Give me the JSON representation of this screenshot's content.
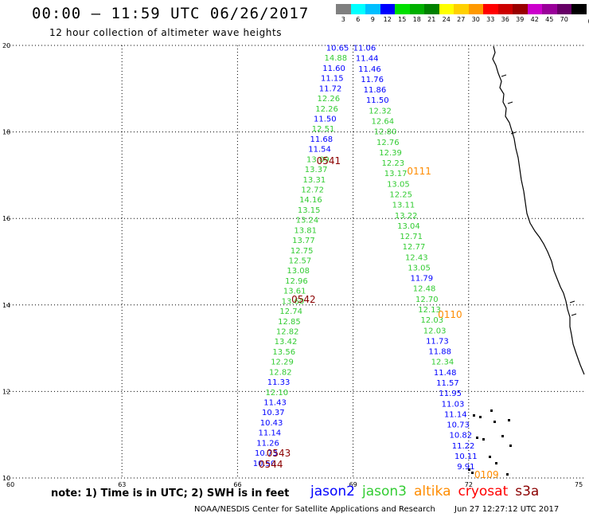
{
  "header": {
    "title": "00:00 – 11:59 UTC 06/26/2017",
    "subtitle": "12 hour collection of altimeter wave heights"
  },
  "legend": {
    "unit": "(ft)",
    "items": [
      {
        "label": "3",
        "color": "#7f7f7f"
      },
      {
        "label": "6",
        "color": "#00ffff"
      },
      {
        "label": "9",
        "color": "#00bfff"
      },
      {
        "label": "12",
        "color": "#0000ff"
      },
      {
        "label": "15",
        "color": "#00e000"
      },
      {
        "label": "18",
        "color": "#00b000"
      },
      {
        "label": "21",
        "color": "#008000"
      },
      {
        "label": "24",
        "color": "#ffff00"
      },
      {
        "label": "27",
        "color": "#ffd000"
      },
      {
        "label": "30",
        "color": "#ff9900"
      },
      {
        "label": "33",
        "color": "#ff0000"
      },
      {
        "label": "36",
        "color": "#cc0000"
      },
      {
        "label": "39",
        "color": "#990000"
      },
      {
        "label": "42",
        "color": "#cc00cc"
      },
      {
        "label": "45",
        "color": "#990099"
      },
      {
        "label": "70",
        "color": "#660066"
      },
      {
        "label": "",
        "color": "#000000"
      }
    ]
  },
  "map": {
    "x_ticks": [
      "60",
      "63",
      "66",
      "69",
      "72",
      "75"
    ],
    "y_ticks": [
      "10",
      "12",
      "14",
      "16",
      "18",
      "20"
    ],
    "x_range": [
      60,
      75
    ],
    "y_range": [
      10,
      20
    ],
    "grid": "dotted",
    "colors": {
      "jason2": "#0000ff",
      "jason3": "#33cc33",
      "altika": "#ff8c00",
      "cryosat": "#ff0000",
      "s3a": "#8b0000",
      "coast": "#000000"
    }
  },
  "tracks": [
    {
      "name": "left-pass",
      "start_lon": 68.3,
      "start_lat": 19.88,
      "end_lon": 66.4,
      "end_lat": 10.28,
      "points": [
        {
          "v": "10.65",
          "s": "jason2"
        },
        {
          "v": "14.88",
          "s": "jason3"
        },
        {
          "v": "11.60",
          "s": "jason2"
        },
        {
          "v": "11.15",
          "s": "jason2"
        },
        {
          "v": "11.72",
          "s": "jason2"
        },
        {
          "v": "12.26",
          "s": "jason3"
        },
        {
          "v": "12.26",
          "s": "jason3"
        },
        {
          "v": "11.50",
          "s": "jason2"
        },
        {
          "v": "12.51",
          "s": "jason3"
        },
        {
          "v": "11.68",
          "s": "jason2"
        },
        {
          "v": "11.54",
          "s": "jason2"
        },
        {
          "v": "13.09",
          "s": "jason3"
        },
        {
          "v": "13.37",
          "s": "jason3"
        },
        {
          "v": "13.31",
          "s": "jason3"
        },
        {
          "v": "12.72",
          "s": "jason3"
        },
        {
          "v": "14.16",
          "s": "jason3"
        },
        {
          "v": "13.15",
          "s": "jason3"
        },
        {
          "v": "13.24",
          "s": "jason3"
        },
        {
          "v": "13.81",
          "s": "jason3"
        },
        {
          "v": "13.77",
          "s": "jason3"
        },
        {
          "v": "12.75",
          "s": "jason3"
        },
        {
          "v": "12.57",
          "s": "jason3"
        },
        {
          "v": "13.08",
          "s": "jason3"
        },
        {
          "v": "12.96",
          "s": "jason3"
        },
        {
          "v": "13.61",
          "s": "jason3"
        },
        {
          "v": "13.60",
          "s": "jason3"
        },
        {
          "v": "12.74",
          "s": "jason3"
        },
        {
          "v": "12.85",
          "s": "jason3"
        },
        {
          "v": "12.82",
          "s": "jason3"
        },
        {
          "v": "13.42",
          "s": "jason3"
        },
        {
          "v": "13.56",
          "s": "jason3"
        },
        {
          "v": "12.29",
          "s": "jason3"
        },
        {
          "v": "12.82",
          "s": "jason3"
        },
        {
          "v": "11.33",
          "s": "jason2"
        },
        {
          "v": "12.10",
          "s": "jason3"
        },
        {
          "v": "11.43",
          "s": "jason2"
        },
        {
          "v": "10.37",
          "s": "jason2"
        },
        {
          "v": "10.43",
          "s": "jason2"
        },
        {
          "v": "11.14",
          "s": "jason2"
        },
        {
          "v": "11.26",
          "s": "jason2"
        },
        {
          "v": "10.73",
          "s": "jason2"
        },
        {
          "v": "10.50",
          "s": "jason2"
        }
      ]
    },
    {
      "name": "right-pass",
      "start_lon": 69.0,
      "start_lat": 19.88,
      "end_lon": 71.7,
      "end_lat": 10.2,
      "points": [
        {
          "v": "11.06",
          "s": "jason2"
        },
        {
          "v": "11.44",
          "s": "jason2"
        },
        {
          "v": "11.46",
          "s": "jason2"
        },
        {
          "v": "11.76",
          "s": "jason2"
        },
        {
          "v": "11.86",
          "s": "jason2"
        },
        {
          "v": "11.50",
          "s": "jason2"
        },
        {
          "v": "12.32",
          "s": "jason3"
        },
        {
          "v": "12.64",
          "s": "jason3"
        },
        {
          "v": "12.80",
          "s": "jason3"
        },
        {
          "v": "12.76",
          "s": "jason3"
        },
        {
          "v": "12.39",
          "s": "jason3"
        },
        {
          "v": "12.23",
          "s": "jason3"
        },
        {
          "v": "13.17",
          "s": "jason3"
        },
        {
          "v": "13.05",
          "s": "jason3"
        },
        {
          "v": "12.25",
          "s": "jason3"
        },
        {
          "v": "13.11",
          "s": "jason3"
        },
        {
          "v": "13.22",
          "s": "jason3"
        },
        {
          "v": "13.04",
          "s": "jason3"
        },
        {
          "v": "12.71",
          "s": "jason3"
        },
        {
          "v": "12.77",
          "s": "jason3"
        },
        {
          "v": "12.43",
          "s": "jason3"
        },
        {
          "v": "13.05",
          "s": "jason3"
        },
        {
          "v": "11.79",
          "s": "jason2"
        },
        {
          "v": "12.48",
          "s": "jason3"
        },
        {
          "v": "12.70",
          "s": "jason3"
        },
        {
          "v": "12.13",
          "s": "jason3"
        },
        {
          "v": "12.03",
          "s": "jason3"
        },
        {
          "v": "12.03",
          "s": "jason3"
        },
        {
          "v": "11.73",
          "s": "jason2"
        },
        {
          "v": "11.88",
          "s": "jason2"
        },
        {
          "v": "12.34",
          "s": "jason3"
        },
        {
          "v": "11.48",
          "s": "jason2"
        },
        {
          "v": "11.57",
          "s": "jason2"
        },
        {
          "v": "11.95",
          "s": "jason2"
        },
        {
          "v": "11.03",
          "s": "jason2"
        },
        {
          "v": "11.14",
          "s": "jason2"
        },
        {
          "v": "10.73",
          "s": "jason2"
        },
        {
          "v": "10.82",
          "s": "jason2"
        },
        {
          "v": "11.22",
          "s": "jason2"
        },
        {
          "v": "10.11",
          "s": "jason2"
        },
        {
          "v": "9.91",
          "s": "jason2"
        }
      ]
    }
  ],
  "time_labels": [
    {
      "text": "0541",
      "s": "s3a",
      "lon": 68.05,
      "lat": 17.26
    },
    {
      "text": "0111",
      "s": "altika",
      "lon": 70.4,
      "lat": 17.02
    },
    {
      "text": "0542",
      "s": "s3a",
      "lon": 67.4,
      "lat": 14.05
    },
    {
      "text": "0110",
      "s": "altika",
      "lon": 71.2,
      "lat": 13.7
    },
    {
      "text": "0543",
      "s": "s3a",
      "lon": 66.75,
      "lat": 10.5
    },
    {
      "text": "0544",
      "s": "s3a",
      "lon": 66.55,
      "lat": 10.24
    },
    {
      "text": "0109",
      "s": "altika",
      "lon": 72.15,
      "lat": 10.0
    }
  ],
  "footer": {
    "note": "note:  1) Time is in UTC; 2) SWH is in feet",
    "satellites": [
      {
        "label": "jason2",
        "key": "jason2"
      },
      {
        "label": "jason3",
        "key": "jason3"
      },
      {
        "label": "altika",
        "key": "altika"
      },
      {
        "label": "cryosat",
        "key": "cryosat"
      },
      {
        "label": "s3a",
        "key": "s3a"
      }
    ],
    "credit": "NOAA/NESDIS Center for Satellite Applications and Research",
    "timestamp": "Jun 27 12:27:12 UTC 2017"
  }
}
